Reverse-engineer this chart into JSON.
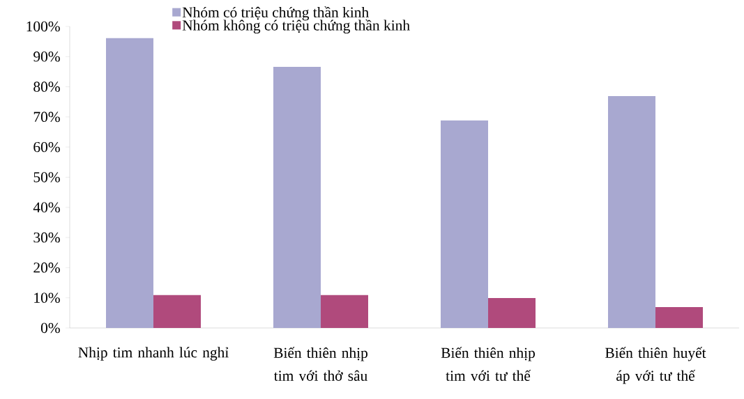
{
  "chart_data": {
    "type": "bar",
    "categories": [
      "Nhịp tim nhanh lúc nghỉ",
      "Biến thiên nhịp tim với thở sâu",
      "Biến thiên nhịp tim với tư thế",
      "Biến thiên huyết áp với tư thế"
    ],
    "series": [
      {
        "name": "Nhóm có triệu chứng thần kinh",
        "color": "#a8a8d0",
        "values": [
          96.1,
          86.6,
          68.8,
          76.9
        ]
      },
      {
        "name": "Nhóm không có triệu chứng thần kinh",
        "color": "#b04a7c",
        "values": [
          10.9,
          10.9,
          9.9,
          6.9
        ]
      }
    ],
    "ylim": [
      0,
      100
    ],
    "yticks": [
      {
        "value": 0,
        "label": "0%"
      },
      {
        "value": 10,
        "label": "10%"
      },
      {
        "value": 20,
        "label": "20%"
      },
      {
        "value": 30,
        "label": "30%"
      },
      {
        "value": 40,
        "label": "40%"
      },
      {
        "value": 50,
        "label": "50%"
      },
      {
        "value": 60,
        "label": "60%"
      },
      {
        "value": 70,
        "label": "70%"
      },
      {
        "value": 80,
        "label": "80%"
      },
      {
        "value": 90,
        "label": "90%"
      },
      {
        "value": 100,
        "label": "100%"
      }
    ],
    "legend": "top",
    "grid": false
  }
}
